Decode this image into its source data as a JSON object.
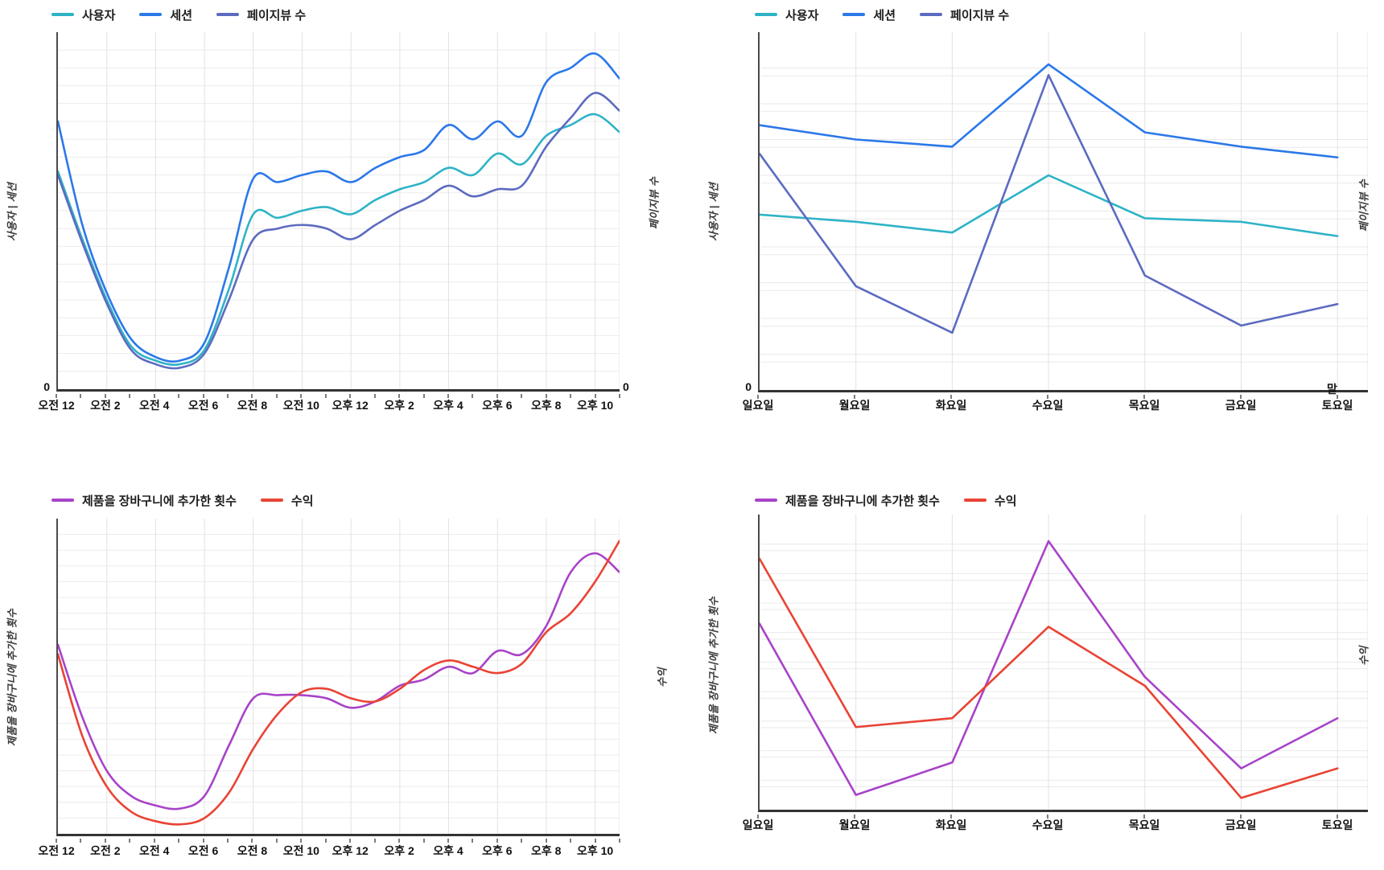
{
  "page": {
    "background": "#ffffff"
  },
  "chart_data": [
    {
      "id": "users-sessions-pageviews-by-hour",
      "type": "line",
      "smooth": true,
      "x_unit": "hour-of-day",
      "n_points": 24,
      "x_tick_labels": [
        "오전 12",
        "오전 2",
        "오전 4",
        "오전 6",
        "오전 8",
        "오전 10",
        "오후 12",
        "오후 2",
        "오후 4",
        "오후 6",
        "오후 8",
        "오후 10"
      ],
      "x_tick_point_indices": [
        0,
        2,
        4,
        6,
        8,
        10,
        12,
        14,
        16,
        18,
        20,
        22
      ],
      "x_span_pct": 100,
      "y_axis_left_title": "사용자 | 세션",
      "y_axis_right_title": "페이지뷰 수",
      "y_origin_left": "0",
      "y_origin_right": "0",
      "y_scale_note": "y axes show only 0; values estimated as percent of plot height",
      "legend_position": "top-left",
      "grid": {
        "horizontal": "fine",
        "vertical": "every-2nd-hour"
      },
      "series": [
        {
          "name": "사용자",
          "color": "#2eb3c7",
          "axis": "left",
          "values": [
            61,
            42,
            25,
            12,
            8,
            7,
            11,
            28,
            49,
            48,
            50,
            51,
            49,
            53,
            56,
            58,
            62,
            60,
            66,
            63,
            71,
            74,
            77,
            72
          ]
        },
        {
          "name": "세션",
          "color": "#2b78e9",
          "axis": "left",
          "values": [
            75,
            46,
            27,
            14,
            9,
            8,
            13,
            34,
            59,
            58,
            60,
            61,
            58,
            62,
            65,
            67,
            74,
            70,
            75,
            71,
            86,
            90,
            94,
            87
          ]
        },
        {
          "name": "페이지뷰 수",
          "color": "#5c6bc0",
          "axis": "right",
          "values": [
            60,
            41,
            24,
            11,
            7,
            6,
            10,
            25,
            42,
            45,
            46,
            45,
            42,
            46,
            50,
            53,
            57,
            54,
            56,
            57,
            68,
            76,
            83,
            78
          ]
        }
      ]
    },
    {
      "id": "users-sessions-pageviews-by-day",
      "type": "line",
      "smooth": false,
      "x_unit": "day-of-week",
      "n_points": 7,
      "x_tick_labels": [
        "일요일",
        "월요일",
        "화요일",
        "수요일",
        "목요일",
        "금요일",
        "토요일"
      ],
      "x_tick_point_indices": [
        0,
        1,
        2,
        3,
        4,
        5,
        6
      ],
      "x_span_pct": 95,
      "y_axis_left_title": "사용자 | 세션",
      "y_axis_right_title": "페이지뷰 수",
      "y_origin_left": "0",
      "stray_label": "말",
      "y_scale_note": "y axes show only 0; values estimated as percent of plot height",
      "legend_position": "top-left",
      "grid": {
        "horizontal": "paired",
        "vertical": "each-day"
      },
      "series": [
        {
          "name": "사용자",
          "color": "#2eb3c7",
          "axis": "left",
          "values": [
            49,
            47,
            44,
            60,
            48,
            47,
            43
          ]
        },
        {
          "name": "세션",
          "color": "#2b78e9",
          "axis": "left",
          "values": [
            74,
            70,
            68,
            91,
            72,
            68,
            65
          ]
        },
        {
          "name": "페이지뷰 수",
          "color": "#5c6bc0",
          "axis": "right",
          "values": [
            66,
            29,
            16,
            88,
            32,
            18,
            24
          ]
        }
      ]
    },
    {
      "id": "add-to-cart-revenue-by-hour",
      "type": "line",
      "smooth": true,
      "x_unit": "hour-of-day",
      "n_points": 24,
      "x_tick_labels": [
        "오전 12",
        "오전 2",
        "오전 4",
        "오전 6",
        "오전 8",
        "오전 10",
        "오후 12",
        "오후 2",
        "오후 4",
        "오후 6",
        "오후 8",
        "오후 10"
      ],
      "x_tick_point_indices": [
        0,
        2,
        4,
        6,
        8,
        10,
        12,
        14,
        16,
        18,
        20,
        22
      ],
      "x_span_pct": 100,
      "y_axis_left_title": "제품을 장바구니에 추가한 횟수",
      "y_axis_right_title": "수익",
      "y_scale_note": "y axes unlabeled; values estimated as percent of plot height",
      "legend_position": "top-left",
      "grid": {
        "horizontal": "fine",
        "vertical": "every-2nd-hour"
      },
      "series": [
        {
          "name": "제품을 장바구니에 추가한 횟수",
          "color": "#a843c8",
          "axis": "left",
          "values": [
            60,
            37,
            20,
            12,
            9,
            8,
            12,
            28,
            43,
            44,
            44,
            43,
            40,
            42,
            47,
            49,
            53,
            51,
            58,
            57,
            66,
            83,
            89,
            83
          ]
        },
        {
          "name": "수익",
          "color": "#e94334",
          "axis": "right",
          "values": [
            57,
            31,
            15,
            7,
            4,
            3,
            5,
            13,
            27,
            38,
            45,
            46,
            43,
            42,
            46,
            52,
            55,
            53,
            51,
            54,
            64,
            70,
            80,
            93
          ]
        }
      ]
    },
    {
      "id": "add-to-cart-revenue-by-day",
      "type": "line",
      "smooth": false,
      "x_unit": "day-of-week",
      "n_points": 7,
      "x_tick_labels": [
        "일요일",
        "월요일",
        "화요일",
        "수요일",
        "목요일",
        "금요일",
        "토요일"
      ],
      "x_tick_point_indices": [
        0,
        1,
        2,
        3,
        4,
        5,
        6
      ],
      "x_span_pct": 95,
      "y_axis_left_title": "제품을 장바구니에 추가한 횟수",
      "y_axis_right_title": "수익",
      "y_scale_note": "y axes unlabeled; values estimated as percent of plot height",
      "legend_position": "top-left",
      "grid": {
        "horizontal": "paired",
        "vertical": "each-day"
      },
      "series": [
        {
          "name": "제품을 장바구니에 추가한 횟수",
          "color": "#a843c8",
          "axis": "left",
          "values": [
            63,
            5,
            16,
            91,
            45,
            14,
            31
          ]
        },
        {
          "name": "수익",
          "color": "#e94334",
          "axis": "right",
          "values": [
            85,
            28,
            31,
            62,
            42,
            4,
            14
          ]
        }
      ]
    }
  ]
}
